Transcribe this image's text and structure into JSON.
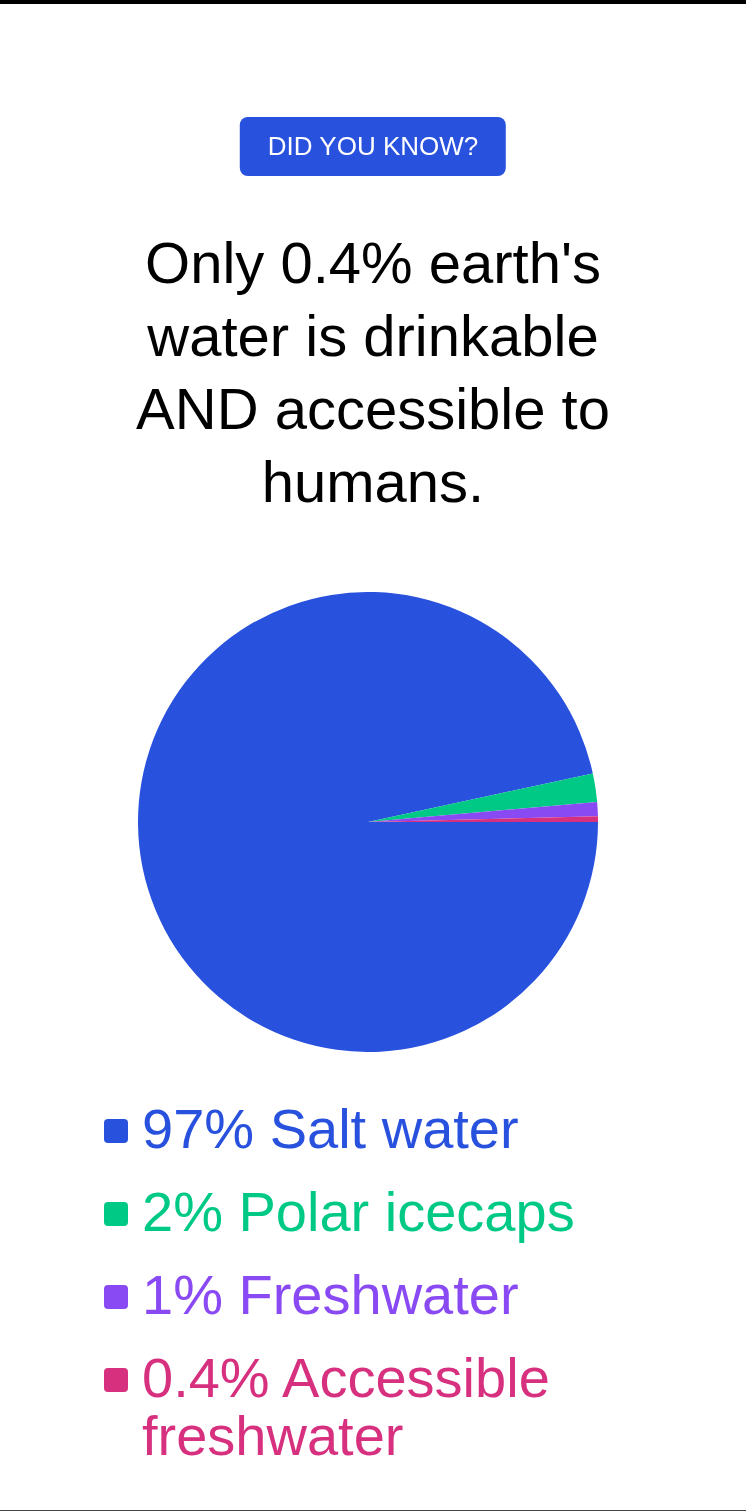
{
  "chart_data": {
    "type": "pie",
    "subtitle": "DID YOU KNOW?",
    "title": "Only 0.4% earth's water is drinkable AND accessible to humans.",
    "categories": [
      "Salt water",
      "Polar icecaps",
      "Freshwater",
      "Accessible freshwater"
    ],
    "values": [
      97,
      2,
      1,
      0.4
    ],
    "colors": [
      "#2851de",
      "#00c986",
      "#8a4af3",
      "#d6307f"
    ],
    "value_labels": [
      "97%",
      "2%",
      "1%",
      "0.4%"
    ],
    "legend": "bottom"
  }
}
